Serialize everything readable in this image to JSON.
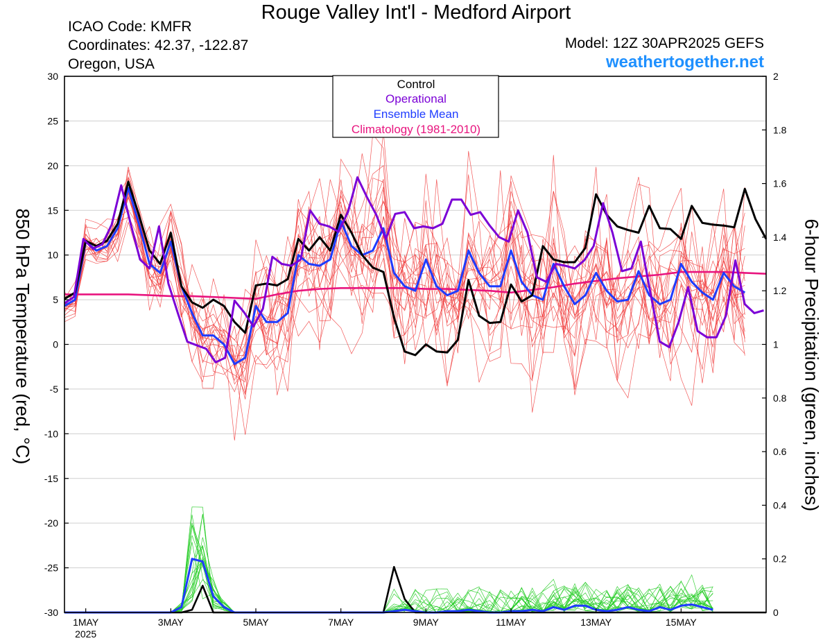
{
  "header": {
    "title": "Rouge Valley Int'l - Medford Airport",
    "icao": "ICAO Code: KMFR",
    "coordinates": "Coordinates: 42.37, -122.87",
    "location": "Oregon, USA",
    "model": "Model: 12Z 30APR2025 GEFS",
    "site": "weathertogether.net"
  },
  "colors": {
    "control": "#000000",
    "operational": "#7B00D6",
    "ensemble_mean": "#1E3CFF",
    "climatology": "#E8147E",
    "members_temp": "#F03A3A",
    "members_precip": "#22CC22",
    "site_link": "#1E90FF"
  },
  "chart_data": {
    "type": "line",
    "title": "Rouge Valley Int'l - Medford Airport",
    "ylabel": "850 hPa Temperature (red, °C)",
    "y2label": "6-hour Precipitation (green, inches)",
    "ylim": [
      -30,
      30
    ],
    "y2lim": [
      0,
      2
    ],
    "yticks": [
      -30,
      -25,
      -20,
      -15,
      -10,
      -5,
      0,
      5,
      10,
      15,
      20,
      25,
      30
    ],
    "y2ticks": [
      "0",
      "0.2",
      "0.4",
      "0.6",
      "0.8",
      "1",
      "1.2",
      "1.4",
      "1.6",
      "1.8",
      "2"
    ],
    "x_unit": "days since 2025-04-30 12Z (6-hourly)",
    "xlim": [
      0,
      16.5
    ],
    "xticks": [
      {
        "x": 0.5,
        "label": "1MAY",
        "sub": "2025"
      },
      {
        "x": 2.5,
        "label": "3MAY"
      },
      {
        "x": 4.5,
        "label": "5MAY"
      },
      {
        "x": 6.5,
        "label": "7MAY"
      },
      {
        "x": 8.5,
        "label": "9MAY"
      },
      {
        "x": 10.5,
        "label": "11MAY"
      },
      {
        "x": 12.5,
        "label": "13MAY"
      },
      {
        "x": 14.5,
        "label": "15MAY"
      }
    ],
    "legend": {
      "position": "top-center",
      "entries": [
        "Control",
        "Operational",
        "Ensemble Mean",
        "Climatology (1981-2010)"
      ]
    },
    "grid": "horizontal",
    "series": [
      {
        "name": "Control",
        "axis": "left",
        "values": [
          5.1,
          5.8,
          11.6,
          11.0,
          11.6,
          13.5,
          18.2,
          14.5,
          10.5,
          9.0,
          12.5,
          6.5,
          4.7,
          4.1,
          5.0,
          4.3,
          2.5,
          1.3,
          6.6,
          6.8,
          6.6,
          7.3,
          11.8,
          10.5,
          12.0,
          10.5,
          14.5,
          12.5,
          10.0,
          8.6,
          8.1,
          3.0,
          -0.8,
          -1.2,
          0.0,
          -0.8,
          -0.9,
          0.5,
          7.2,
          3.2,
          2.4,
          2.5,
          6.7,
          4.8,
          5.5,
          11.0,
          9.5,
          9.2,
          9.2,
          10.8,
          16.8,
          14.5,
          13.2,
          12.8,
          12.5,
          15.5,
          13.0,
          12.9,
          11.8,
          15.5,
          13.6,
          13.4,
          13.3,
          13.1,
          17.4,
          14.0,
          11.8
        ]
      },
      {
        "name": "Operational",
        "axis": "left",
        "values": [
          4.6,
          5.3,
          11.8,
          10.7,
          11.2,
          13.4,
          17.8,
          13.5,
          9.5,
          8.5,
          13.2,
          6.8,
          3.5,
          0.3,
          -0.1,
          -0.5,
          -2.0,
          -1.5,
          4.9,
          3.6,
          2.0,
          4.0,
          9.8,
          9.0,
          8.8,
          9.5,
          15.0,
          13.5,
          13.2,
          12.6,
          14.8,
          18.7,
          16.5,
          14.5,
          11.8,
          14.6,
          14.8,
          13.0,
          13.2,
          13.0,
          13.5,
          16.2,
          16.2,
          14.5,
          14.8,
          13.3,
          12.0,
          11.5,
          15.0,
          12.5,
          7.5,
          7.0,
          9.0,
          8.8,
          8.5,
          9.4,
          11.0,
          15.8,
          12.5,
          8.2,
          8.5,
          11.5,
          5.8,
          0.3,
          -0.3,
          2.5,
          6.4,
          1.5,
          0.8,
          0.8,
          3.2,
          9.4,
          4.5,
          3.5,
          3.8
        ]
      },
      {
        "name": "Ensemble Mean",
        "axis": "left",
        "values": [
          4.3,
          5.0,
          11.5,
          10.5,
          11.0,
          13.0,
          17.5,
          13.5,
          9.0,
          8.0,
          11.5,
          6.5,
          3.5,
          1.0,
          1.0,
          0.0,
          -2.2,
          -1.5,
          4.3,
          2.5,
          2.5,
          3.5,
          10.0,
          9.0,
          8.8,
          9.5,
          13.8,
          11.0,
          10.0,
          10.5,
          13.0,
          8.0,
          6.5,
          6.0,
          9.5,
          6.5,
          5.5,
          6.0,
          10.5,
          8.0,
          6.5,
          6.5,
          10.5,
          7.0,
          5.5,
          5.0,
          9.0,
          6.5,
          4.5,
          5.5,
          8.0,
          6.0,
          4.8,
          5.0,
          8.2,
          5.5,
          4.5,
          5.0,
          9.0,
          7.0,
          5.8,
          5.0,
          8.0,
          6.5,
          5.8
        ]
      },
      {
        "name": "Climatology (1981-2010)",
        "axis": "left",
        "values": [
          5.6,
          5.6,
          5.6,
          5.6,
          5.5,
          5.4,
          5.4,
          5.3,
          5.2,
          5.1,
          5.6,
          6.0,
          6.2,
          6.3,
          6.3,
          6.3,
          6.3,
          6.2,
          6.2,
          6.1,
          6.0,
          5.8,
          6.1,
          6.4,
          6.8,
          7.1,
          7.4,
          7.6,
          7.8,
          8.1,
          8.1,
          8.1,
          8.0,
          7.9
        ]
      },
      {
        "name": "Control precip",
        "axis": "right",
        "values": [
          0,
          0,
          0,
          0,
          0,
          0,
          0,
          0,
          0,
          0,
          0,
          0,
          0.01,
          0.1,
          0,
          0,
          0,
          0,
          0,
          0,
          0,
          0,
          0,
          0,
          0,
          0,
          0,
          0,
          0,
          0,
          0,
          0.17,
          0.05,
          0,
          0,
          0,
          0,
          0,
          0,
          0,
          0,
          0,
          0,
          0,
          0,
          0,
          0,
          0,
          0,
          0,
          0,
          0,
          0,
          0,
          0,
          0,
          0,
          0,
          0,
          0,
          0,
          0,
          0,
          0,
          0,
          0,
          0
        ]
      },
      {
        "name": "Ensemble Mean precip",
        "axis": "right",
        "values": [
          0,
          0,
          0,
          0,
          0,
          0,
          0,
          0,
          0,
          0,
          0,
          0.02,
          0.2,
          0.19,
          0.06,
          0.02,
          0,
          0,
          0,
          0,
          0,
          0,
          0,
          0,
          0,
          0,
          0,
          0,
          0,
          0,
          0,
          0.005,
          0.01,
          0.005,
          0,
          0,
          0.005,
          0.005,
          0.01,
          0.005,
          0,
          0,
          0.005,
          0.005,
          0.01,
          0.005,
          0.02,
          0.01,
          0.025,
          0.025,
          0.01,
          0.005,
          0.01,
          0.02,
          0.01,
          0.005,
          0.02,
          0.01,
          0.025,
          0.03,
          0.02,
          0.01
        ]
      }
    ]
  }
}
